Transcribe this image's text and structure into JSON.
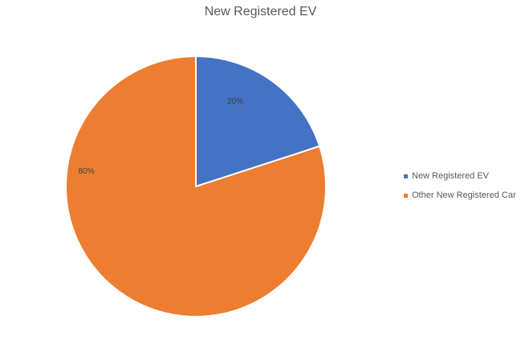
{
  "chart_data": {
    "type": "pie",
    "title": "New Registered EV",
    "categories": [
      "New Registered EV",
      "Other New Registered Car"
    ],
    "values": [
      20,
      80
    ],
    "data_labels": [
      "20%",
      "80%"
    ],
    "colors": [
      "#4472C4",
      "#ED7D31"
    ],
    "legend_placement": "right"
  }
}
